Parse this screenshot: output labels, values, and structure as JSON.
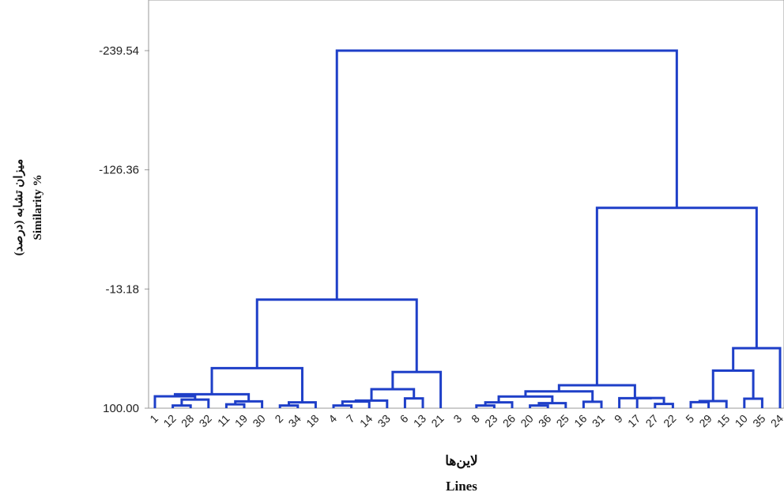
{
  "chart_data": {
    "type": "dendrogram",
    "ylabel_fa": "میزان تشابه (درصد)",
    "ylabel_en": "Similarity %",
    "xlabel_fa": "لاین‌ها",
    "xlabel_en": "Lines",
    "y_ticks": [
      "-239.54",
      "-126.36",
      "-13.18",
      "100.00"
    ],
    "y_tick_values": [
      -239.54,
      -126.36,
      -13.18,
      100.0
    ],
    "ylim": [
      100.0,
      -239.54
    ],
    "leaf_order": [
      "1",
      "12",
      "28",
      "32",
      "11",
      "19",
      "30",
      "2",
      "34",
      "18",
      "4",
      "7",
      "14",
      "33",
      "6",
      "13",
      "21",
      "3",
      "8",
      "23",
      "26",
      "20",
      "36",
      "25",
      "16",
      "31",
      "9",
      "17",
      "27",
      "22",
      "5",
      "29",
      "15",
      "10",
      "35",
      "24"
    ],
    "merges": [
      {
        "a": "L12",
        "b": "L28",
        "h": 97.5
      },
      {
        "a": "L2",
        "b": "L34",
        "h": 97.5
      },
      {
        "a": "L4",
        "b": "L7",
        "h": 97.5
      },
      {
        "a": "L8",
        "b": "L23",
        "h": 97.5
      },
      {
        "a": "L20",
        "b": "L36",
        "h": 97.5
      },
      {
        "a": "L27",
        "b": "L22",
        "h": 96.0
      },
      {
        "a": "L11",
        "b": "L19",
        "h": 96.3
      },
      {
        "a": "C0",
        "b": "L32",
        "h": 91.8
      },
      {
        "a": "C6",
        "b": "L30",
        "h": 93.5
      },
      {
        "a": "C1",
        "b": "L18",
        "h": 94.5
      },
      {
        "a": "C2",
        "b": "L14",
        "h": 93.7
      },
      {
        "a": "C10",
        "b": "L33",
        "h": 92.8
      },
      {
        "a": "L6",
        "b": "L13",
        "h": 90.7
      },
      {
        "a": "C3",
        "b": "L26",
        "h": 94.5
      },
      {
        "a": "C4",
        "b": "L25",
        "h": 95.2
      },
      {
        "a": "L16",
        "b": "L31",
        "h": 93.9
      },
      {
        "a": "L17",
        "b": "C5",
        "h": 90.3
      },
      {
        "a": "L9",
        "b": "C16",
        "h": 90.5
      },
      {
        "a": "L5",
        "b": "L29",
        "h": 94.3
      },
      {
        "a": "C18",
        "b": "L15",
        "h": 93.2
      },
      {
        "a": "L10",
        "b": "L35",
        "h": 91.0
      },
      {
        "a": "L1",
        "b": "C7",
        "h": 88.7
      },
      {
        "a": "C8",
        "b": "C21",
        "h": 86.8
      },
      {
        "a": "C22",
        "b": "C9",
        "h": 62.0
      },
      {
        "a": "C11",
        "b": "C12",
        "h": 82.0
      },
      {
        "a": "C24",
        "b": "L21",
        "h": 65.6
      },
      {
        "a": "C23",
        "b": "C25",
        "h": -3.1
      },
      {
        "a": "C13",
        "b": "C14",
        "h": 88.9
      },
      {
        "a": "C27",
        "b": "C15",
        "h": 84.0
      },
      {
        "a": "C28",
        "b": "C17",
        "h": 78.2
      },
      {
        "a": "C19",
        "b": "C20",
        "h": 64.3
      },
      {
        "a": "C30",
        "b": "L24",
        "h": 43.0
      },
      {
        "a": "C29",
        "b": "C31",
        "h": -90.2
      },
      {
        "a": "C26",
        "b": "C32",
        "h": -239.54
      }
    ],
    "line_color": "#1E3FC8",
    "axis_color": "#999999"
  }
}
